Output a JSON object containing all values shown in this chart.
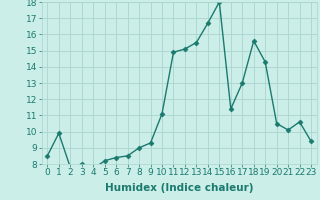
{
  "x": [
    0,
    1,
    2,
    3,
    4,
    5,
    6,
    7,
    8,
    9,
    10,
    11,
    12,
    13,
    14,
    15,
    16,
    17,
    18,
    19,
    20,
    21,
    22,
    23
  ],
  "y": [
    8.5,
    9.9,
    7.8,
    8.0,
    7.7,
    8.2,
    8.4,
    8.5,
    9.0,
    9.3,
    11.1,
    14.9,
    15.1,
    15.5,
    16.7,
    18.0,
    11.4,
    13.0,
    15.6,
    14.3,
    10.5,
    10.1,
    10.6,
    9.4
  ],
  "line_color": "#1a7a6e",
  "marker": "D",
  "marker_size": 2.5,
  "bg_color": "#cceee8",
  "grid_color": "#aad4ce",
  "xlabel": "Humidex (Indice chaleur)",
  "ylabel": "",
  "xlim": [
    -0.5,
    23.5
  ],
  "ylim": [
    8,
    18
  ],
  "yticks": [
    8,
    9,
    10,
    11,
    12,
    13,
    14,
    15,
    16,
    17,
    18
  ],
  "xticks": [
    0,
    1,
    2,
    3,
    4,
    5,
    6,
    7,
    8,
    9,
    10,
    11,
    12,
    13,
    14,
    15,
    16,
    17,
    18,
    19,
    20,
    21,
    22,
    23
  ],
  "tick_label_fontsize": 6.5,
  "xlabel_fontsize": 7.5,
  "linewidth": 1.0
}
